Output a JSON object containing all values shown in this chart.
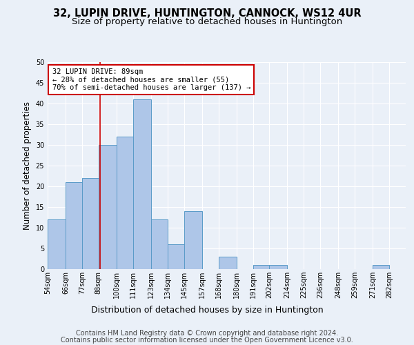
{
  "title1": "32, LUPIN DRIVE, HUNTINGTON, CANNOCK, WS12 4UR",
  "title2": "Size of property relative to detached houses in Huntington",
  "xlabel": "Distribution of detached houses by size in Huntington",
  "ylabel": "Number of detached properties",
  "categories": [
    "54sqm",
    "66sqm",
    "77sqm",
    "88sqm",
    "100sqm",
    "111sqm",
    "123sqm",
    "134sqm",
    "145sqm",
    "157sqm",
    "168sqm",
    "180sqm",
    "191sqm",
    "202sqm",
    "214sqm",
    "225sqm",
    "236sqm",
    "248sqm",
    "259sqm",
    "271sqm",
    "282sqm"
  ],
  "values": [
    12,
    21,
    22,
    30,
    32,
    41,
    12,
    6,
    14,
    0,
    3,
    0,
    1,
    1,
    0,
    0,
    0,
    0,
    0,
    1,
    0
  ],
  "bar_color": "#aec6e8",
  "bar_edge_color": "#5a9bc8",
  "property_line_x": 89,
  "bin_edges": [
    54,
    66,
    77,
    88,
    100,
    111,
    123,
    134,
    145,
    157,
    168,
    180,
    191,
    202,
    214,
    225,
    236,
    248,
    259,
    271,
    282,
    293
  ],
  "annotation_text": "32 LUPIN DRIVE: 89sqm\n← 28% of detached houses are smaller (55)\n70% of semi-detached houses are larger (137) →",
  "annotation_box_color": "#ffffff",
  "annotation_box_edge": "#cc0000",
  "vline_color": "#cc0000",
  "ylim": [
    0,
    50
  ],
  "yticks": [
    0,
    5,
    10,
    15,
    20,
    25,
    30,
    35,
    40,
    45,
    50
  ],
  "footer1": "Contains HM Land Registry data © Crown copyright and database right 2024.",
  "footer2": "Contains public sector information licensed under the Open Government Licence v3.0.",
  "bg_color": "#eaf0f8",
  "plot_bg_color": "#eaf0f8",
  "title1_fontsize": 10.5,
  "title2_fontsize": 9.5,
  "xlabel_fontsize": 9,
  "ylabel_fontsize": 8.5,
  "tick_fontsize": 7,
  "footer_fontsize": 7,
  "annot_fontsize": 7.5
}
